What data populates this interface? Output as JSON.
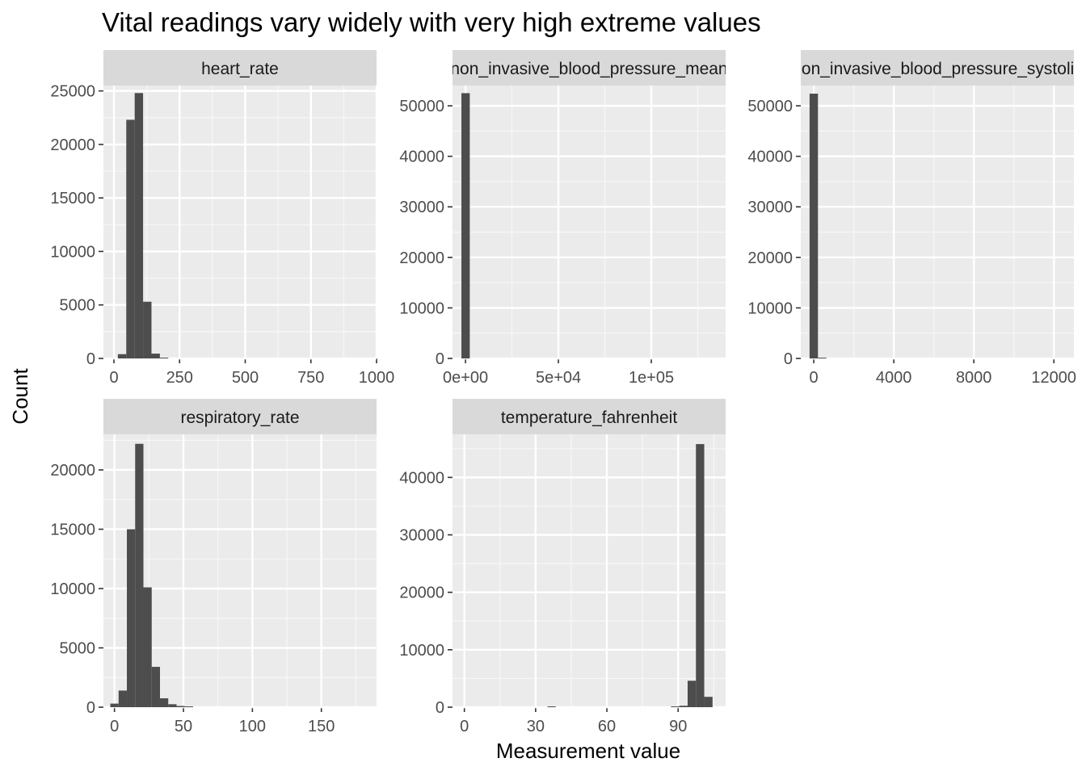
{
  "title": "Vital readings vary widely with very high extreme values",
  "xlabel": "Measurement value",
  "ylabel": "Count",
  "chart_data": [
    {
      "type": "bar",
      "facet": "heart_rate",
      "xlim": [
        -40,
        1000
      ],
      "ylim": [
        0,
        25500
      ],
      "x_ticks": [
        0,
        250,
        500,
        750,
        1000
      ],
      "x_tick_labels": [
        "0",
        "250",
        "500",
        "750",
        "1000"
      ],
      "y_ticks": [
        0,
        5000,
        10000,
        15000,
        20000,
        25000
      ],
      "y_tick_labels": [
        "0",
        "5000",
        "10000",
        "15000",
        "20000",
        "25000"
      ],
      "bins": [
        {
          "x0": 15,
          "x1": 47,
          "value": 400
        },
        {
          "x0": 47,
          "x1": 79,
          "value": 22300
        },
        {
          "x0": 79,
          "x1": 111,
          "value": 24800
        },
        {
          "x0": 111,
          "x1": 143,
          "value": 5300
        },
        {
          "x0": 143,
          "x1": 175,
          "value": 450
        },
        {
          "x0": 175,
          "x1": 207,
          "value": 60
        }
      ]
    },
    {
      "type": "bar",
      "facet": "non_invasive_blood_pressure_mean",
      "xlim": [
        -7000,
        140000
      ],
      "ylim": [
        0,
        54000
      ],
      "x_ticks": [
        0,
        50000,
        100000
      ],
      "x_tick_labels": [
        "0e+00",
        "5e+04",
        "1e+05"
      ],
      "y_ticks": [
        0,
        10000,
        20000,
        30000,
        40000,
        50000
      ],
      "y_tick_labels": [
        "0",
        "10000",
        "20000",
        "30000",
        "40000",
        "50000"
      ],
      "bins": [
        {
          "x0": -2200,
          "x1": 2300,
          "value": 52500
        }
      ]
    },
    {
      "type": "bar",
      "facet": "non_invasive_blood_pressure_systolic",
      "xlim": [
        -650,
        13000
      ],
      "ylim": [
        0,
        54000
      ],
      "x_ticks": [
        0,
        4000,
        8000,
        12000
      ],
      "x_tick_labels": [
        "0",
        "4000",
        "8000",
        "12000"
      ],
      "y_ticks": [
        0,
        10000,
        20000,
        30000,
        40000,
        50000
      ],
      "y_tick_labels": [
        "0",
        "10000",
        "20000",
        "30000",
        "40000",
        "50000"
      ],
      "bins": [
        {
          "x0": -210,
          "x1": 210,
          "value": 52400
        },
        {
          "x0": 210,
          "x1": 630,
          "value": 150
        }
      ]
    },
    {
      "type": "bar",
      "facet": "respiratory_rate",
      "xlim": [
        -8,
        190
      ],
      "ylim": [
        0,
        23000
      ],
      "x_ticks": [
        0,
        50,
        100,
        150
      ],
      "x_tick_labels": [
        "0",
        "50",
        "100",
        "150"
      ],
      "y_ticks": [
        0,
        5000,
        10000,
        15000,
        20000
      ],
      "y_tick_labels": [
        "0",
        "5000",
        "10000",
        "15000",
        "20000"
      ],
      "bins": [
        {
          "x0": -3,
          "x1": 3,
          "value": 300
        },
        {
          "x0": 3,
          "x1": 9,
          "value": 1400
        },
        {
          "x0": 9,
          "x1": 15,
          "value": 15000
        },
        {
          "x0": 15,
          "x1": 21,
          "value": 22200
        },
        {
          "x0": 21,
          "x1": 27,
          "value": 10100
        },
        {
          "x0": 27,
          "x1": 33,
          "value": 3400
        },
        {
          "x0": 33,
          "x1": 39,
          "value": 750
        },
        {
          "x0": 39,
          "x1": 45,
          "value": 250
        },
        {
          "x0": 45,
          "x1": 51,
          "value": 100
        },
        {
          "x0": 51,
          "x1": 57,
          "value": 40
        }
      ]
    },
    {
      "type": "bar",
      "facet": "temperature_fahrenheit",
      "xlim": [
        -5,
        110
      ],
      "ylim": [
        0,
        47500
      ],
      "x_ticks": [
        0,
        30,
        60,
        90
      ],
      "x_tick_labels": [
        "0",
        "30",
        "60",
        "90"
      ],
      "y_ticks": [
        0,
        10000,
        20000,
        30000,
        40000
      ],
      "y_tick_labels": [
        "0",
        "10000",
        "20000",
        "30000",
        "40000"
      ],
      "bins": [
        {
          "x0": 35,
          "x1": 38.5,
          "value": 100
        },
        {
          "x0": 87,
          "x1": 90.5,
          "value": 40
        },
        {
          "x0": 90.5,
          "x1": 94,
          "value": 250
        },
        {
          "x0": 94,
          "x1": 97.5,
          "value": 4600
        },
        {
          "x0": 97.5,
          "x1": 101,
          "value": 45800
        },
        {
          "x0": 101,
          "x1": 104.5,
          "value": 1800
        }
      ]
    }
  ]
}
